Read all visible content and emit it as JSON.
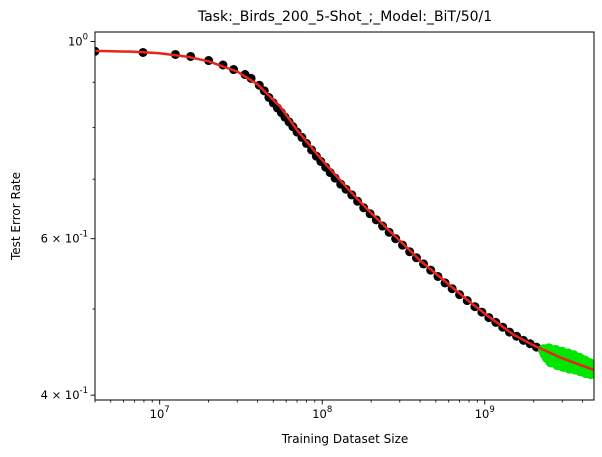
{
  "chart_data": {
    "type": "scatter",
    "title": "Task:_Birds_200_5-Shot_;_Model:_BiT/50/1",
    "xlabel": "Training Dataset Size",
    "ylabel": "Test Error Rate",
    "xscale": "log",
    "yscale": "log",
    "xlim": [
      4000000,
      4700000000
    ],
    "ylim": [
      0.395,
      1.025
    ],
    "grid": false,
    "x_tick_labels": [
      "10^7",
      "10^8",
      "10^9"
    ],
    "x_tick_values": [
      10000000,
      100000000,
      1000000000
    ],
    "y_tick_labels": [
      "4 × 10^-1",
      "6 × 10^-1",
      "10^0"
    ],
    "y_tick_values": [
      0.4,
      0.6,
      1.0
    ],
    "colors": {
      "train_points": "#000000",
      "test_points": "#00e600",
      "fit": "#e8231e"
    },
    "series": [
      {
        "kind": "points",
        "color_key": "train_points",
        "points": [
          [
            4000000,
            0.975
          ],
          [
            7900000,
            0.972
          ],
          [
            12500000,
            0.967
          ],
          [
            15500000,
            0.962
          ],
          [
            20000000,
            0.952
          ],
          [
            24500000,
            0.941
          ],
          [
            28500000,
            0.93
          ],
          [
            33500000,
            0.918
          ],
          [
            36500000,
            0.909
          ],
          [
            41000000,
            0.893
          ],
          [
            44000000,
            0.88
          ],
          [
            47000000,
            0.865
          ],
          [
            50000000,
            0.853
          ],
          [
            53000000,
            0.842
          ],
          [
            56000000,
            0.832
          ],
          [
            59000000,
            0.822
          ],
          [
            62500000,
            0.812
          ],
          [
            66000000,
            0.802
          ],
          [
            70000000,
            0.791
          ],
          [
            75000000,
            0.78
          ],
          [
            80000000,
            0.768
          ],
          [
            86000000,
            0.755
          ],
          [
            92000000,
            0.743
          ],
          [
            98000000,
            0.733
          ],
          [
            105000000,
            0.722
          ],
          [
            112000000,
            0.712
          ],
          [
            120000000,
            0.702
          ],
          [
            130000000,
            0.691
          ],
          [
            140000000,
            0.682
          ],
          [
            152000000,
            0.672
          ],
          [
            165000000,
            0.661
          ],
          [
            180000000,
            0.65
          ],
          [
            197000000,
            0.64
          ],
          [
            215000000,
            0.63
          ],
          [
            235000000,
            0.62
          ],
          [
            258000000,
            0.61
          ],
          [
            283000000,
            0.6
          ],
          [
            312000000,
            0.59
          ],
          [
            345000000,
            0.58
          ],
          [
            380000000,
            0.571
          ],
          [
            420000000,
            0.562
          ],
          [
            465000000,
            0.553
          ],
          [
            515000000,
            0.544
          ],
          [
            570000000,
            0.535
          ],
          [
            630000000,
            0.527
          ],
          [
            700000000,
            0.519
          ],
          [
            780000000,
            0.511
          ],
          [
            870000000,
            0.503
          ],
          [
            960000000,
            0.496
          ],
          [
            1060000000,
            0.489
          ],
          [
            1170000000,
            0.483
          ],
          [
            1290000000,
            0.477
          ],
          [
            1420000000,
            0.471
          ],
          [
            1570000000,
            0.466
          ],
          [
            1730000000,
            0.461
          ],
          [
            1900000000,
            0.457
          ],
          [
            2080000000,
            0.453
          ],
          [
            2270000000,
            0.449
          ]
        ]
      },
      {
        "kind": "points",
        "color_key": "test_points",
        "points": [
          [
            2300000000,
            0.45
          ],
          [
            2350000000,
            0.445
          ],
          [
            2420000000,
            0.441
          ],
          [
            2480000000,
            0.451
          ],
          [
            2550000000,
            0.436
          ],
          [
            2600000000,
            0.446
          ],
          [
            2670000000,
            0.44
          ],
          [
            2730000000,
            0.449
          ],
          [
            2800000000,
            0.433
          ],
          [
            2850000000,
            0.443
          ],
          [
            2920000000,
            0.438
          ],
          [
            2980000000,
            0.447
          ],
          [
            3050000000,
            0.431
          ],
          [
            3100000000,
            0.441
          ],
          [
            3180000000,
            0.435
          ],
          [
            3250000000,
            0.445
          ],
          [
            3320000000,
            0.429
          ],
          [
            3380000000,
            0.439
          ],
          [
            3450000000,
            0.433
          ],
          [
            3520000000,
            0.443
          ],
          [
            3600000000,
            0.428
          ],
          [
            3670000000,
            0.437
          ],
          [
            3750000000,
            0.431
          ],
          [
            3820000000,
            0.44
          ],
          [
            3900000000,
            0.426
          ],
          [
            3970000000,
            0.435
          ],
          [
            4050000000,
            0.429
          ],
          [
            4120000000,
            0.437
          ],
          [
            4200000000,
            0.424
          ],
          [
            4280000000,
            0.432
          ],
          [
            4350000000,
            0.427
          ],
          [
            4420000000,
            0.434
          ],
          [
            4500000000,
            0.423
          ],
          [
            4560000000,
            0.43
          ]
        ]
      },
      {
        "kind": "line",
        "color_key": "fit",
        "points": [
          [
            4000000,
            0.976
          ],
          [
            7000000,
            0.974
          ],
          [
            10000000,
            0.97
          ],
          [
            15000000,
            0.961
          ],
          [
            20000000,
            0.95
          ],
          [
            30000000,
            0.925
          ],
          [
            40000000,
            0.895
          ],
          [
            55000000,
            0.845
          ],
          [
            70000000,
            0.795
          ],
          [
            100000000,
            0.735
          ],
          [
            150000000,
            0.677
          ],
          [
            200000000,
            0.641
          ],
          [
            300000000,
            0.597
          ],
          [
            400000000,
            0.567
          ],
          [
            600000000,
            0.533
          ],
          [
            800000000,
            0.51
          ],
          [
            1000000000,
            0.494
          ],
          [
            1500000000,
            0.468
          ],
          [
            2000000000,
            0.455
          ],
          [
            3000000000,
            0.44
          ],
          [
            4700000000,
            0.427
          ]
        ]
      }
    ]
  }
}
